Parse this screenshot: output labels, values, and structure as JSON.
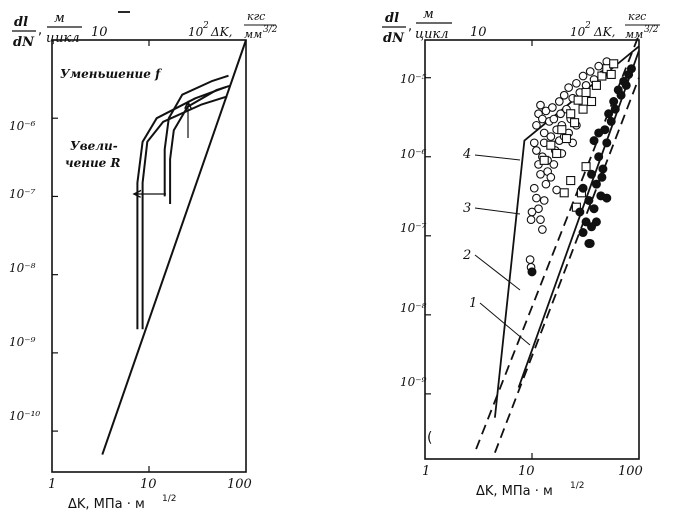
{
  "chart_data": [
    {
      "type": "line",
      "panel": "left",
      "title": "",
      "y_label_top": "dl",
      "y_label_bottom": "dN",
      "y_unit_top": "м",
      "y_unit_bottom": "цикл",
      "top_axis_prefix": "10",
      "top_axis_label": "ΔK,",
      "top_axis_unit_top": "кгс",
      "top_axis_unit_bottom": "мм",
      "top_axis_unit_exp": "3/2",
      "top_ticks": [
        "10",
        "10²"
      ],
      "xlabel": "ΔK, МПа · м",
      "xlabel_exp": "1/2",
      "x_ticks": [
        "1",
        "10",
        "100"
      ],
      "xscale": "log",
      "yscale": "log",
      "xlim": [
        1,
        100
      ],
      "ylim": [
        3e-11,
        1e-05
      ],
      "y_ticks": [
        "10⁻⁶",
        "10⁻⁷",
        "10⁻⁸",
        "10⁻⁹",
        "10⁻¹⁰"
      ],
      "annotations": [
        {
          "text": "Уменьшение f",
          "target": "arrow-up"
        },
        {
          "text": "Увели-",
          "target": "arrow-left"
        },
        {
          "text": "чение R",
          "target": "arrow-left"
        }
      ],
      "series": [
        {
          "values": [
            [
              3.3,
              5e-11
            ],
            [
              100,
              1e-05
            ]
          ]
        },
        {
          "values": [
            [
              7.6,
              2e-09
            ],
            [
              7.6,
              1.5e-07
            ],
            [
              8.6,
              5e-07
            ],
            [
              12,
              1e-06
            ],
            [
              30,
              1.8e-06
            ],
            [
              62,
              2.5e-06
            ]
          ]
        },
        {
          "values": [
            [
              8.6,
              2e-09
            ],
            [
              8.6,
              1.5e-07
            ],
            [
              9.6,
              5e-07
            ],
            [
              14,
              9e-07
            ],
            [
              35,
              1.5e-06
            ],
            [
              64,
              1.9e-06
            ]
          ]
        },
        {
          "values": [
            [
              14.5,
              1e-07
            ],
            [
              14.5,
              4e-07
            ],
            [
              16,
              1e-06
            ],
            [
              22,
              2e-06
            ],
            [
              45,
              3e-06
            ],
            [
              66,
              3.5e-06
            ]
          ]
        },
        {
          "values": [
            [
              16.5,
              8e-08
            ],
            [
              16.5,
              3e-07
            ],
            [
              18,
              7e-07
            ],
            [
              25,
              1.4e-06
            ],
            [
              50,
              2.3e-06
            ],
            [
              68,
              2.6e-06
            ]
          ]
        }
      ]
    },
    {
      "type": "scatter",
      "panel": "right",
      "title": "",
      "y_label_top": "dl",
      "y_label_bottom": "dN",
      "y_unit_top": "м",
      "y_unit_bottom": "цикл",
      "top_axis_prefix": "10",
      "top_axis_label": "ΔK,",
      "top_axis_unit_top": "кгс",
      "top_axis_unit_bottom": "мм",
      "top_axis_unit_exp": "3/2",
      "top_ticks": [
        "10",
        "10²"
      ],
      "xlabel": "ΔK, МПа · м",
      "xlabel_exp": "1/2",
      "x_ticks": [
        "1",
        "10",
        "100"
      ],
      "xscale": "log",
      "yscale": "log",
      "xlim": [
        1,
        100
      ],
      "ylim": [
        1.5e-10,
        3e-05
      ],
      "y_ticks": [
        "10⁻⁵",
        "10⁻⁶",
        "10⁻⁷",
        "10⁻⁸",
        "10⁻⁹"
      ],
      "curve_labels": [
        "4",
        "3",
        "2",
        "1"
      ],
      "lines": [
        {
          "label": "4",
          "style": "solid",
          "values": [
            [
              4.5,
              5e-10
            ],
            [
              8.5,
              1.6e-06
            ],
            [
              100,
              2.5e-05
            ]
          ]
        },
        {
          "label": "2",
          "style": "dashed",
          "values": [
            [
              3,
              2e-10
            ],
            [
              100,
              3.5e-05
            ]
          ]
        },
        {
          "label": "1",
          "style": "dashed",
          "values": [
            [
              4.5,
              1.8e-10
            ],
            [
              100,
              1e-05
            ]
          ]
        },
        {
          "label": "3",
          "style": "solid",
          "values": [
            [
              7.5,
              1.2e-09
            ],
            [
              100,
              2.2e-05
            ]
          ]
        }
      ],
      "series": [
        {
          "marker": "open-circle",
          "points": [
            [
              10.5,
              1.5e-06
            ],
            [
              11,
              2.5e-06
            ],
            [
              11.5,
              3.5e-06
            ],
            [
              12,
              4.5e-06
            ],
            [
              12.5,
              3e-06
            ],
            [
              13,
              2e-06
            ],
            [
              13.5,
              3.8e-06
            ],
            [
              11,
              1.2e-06
            ],
            [
              11.5,
              8e-07
            ],
            [
              12,
              6e-07
            ],
            [
              12.5,
              1e-06
            ],
            [
              13,
              1.5e-06
            ],
            [
              14,
              9e-07
            ],
            [
              14.5,
              2.8e-06
            ],
            [
              15,
              1.8e-06
            ],
            [
              15.5,
              4.2e-06
            ],
            [
              16,
              3e-06
            ],
            [
              16.5,
              1.2e-06
            ],
            [
              17,
              2.2e-06
            ],
            [
              18,
              5e-06
            ],
            [
              18.5,
              3.5e-06
            ],
            [
              19,
              2.5e-06
            ],
            [
              20,
              6e-06
            ],
            [
              21,
              4e-06
            ],
            [
              22,
              7.5e-06
            ],
            [
              23,
              3e-06
            ],
            [
              24,
              5.5e-06
            ],
            [
              26,
              8.5e-06
            ],
            [
              28,
              6.5e-06
            ],
            [
              30,
              1.05e-05
            ],
            [
              32,
              8e-06
            ],
            [
              35,
              1.2e-05
            ],
            [
              38,
              9.5e-06
            ],
            [
              42,
              1.4e-05
            ],
            [
              46,
              1.1e-05
            ],
            [
              50,
              1.6e-05
            ],
            [
              10.5,
              4e-07
            ],
            [
              11,
              3e-07
            ],
            [
              11.5,
              2.2e-07
            ],
            [
              12,
              1.6e-07
            ],
            [
              12.5,
              1.2e-07
            ],
            [
              13,
              2.8e-07
            ],
            [
              13.5,
              4.5e-07
            ],
            [
              14,
              6.5e-07
            ],
            [
              15,
              5.5e-07
            ],
            [
              16,
              8e-07
            ],
            [
              17,
              3.8e-07
            ],
            [
              18,
              1.6e-06
            ],
            [
              19,
              1.1e-06
            ],
            [
              20,
              1.8e-06
            ],
            [
              22,
              2e-06
            ],
            [
              24,
              1.5e-06
            ],
            [
              26,
              2.5e-06
            ],
            [
              10,
              2e-07
            ],
            [
              9.8,
              1.6e-07
            ],
            [
              9.6,
              5e-08
            ],
            [
              9.8,
              4e-08
            ]
          ]
        },
        {
          "marker": "open-square",
          "points": [
            [
              13,
              9e-07
            ],
            [
              15,
              1.4e-06
            ],
            [
              17,
              1.1e-06
            ],
            [
              19,
              2.2e-06
            ],
            [
              21,
              1.7e-06
            ],
            [
              23,
              3.5e-06
            ],
            [
              25,
              2.7e-06
            ],
            [
              27,
              5.2e-06
            ],
            [
              30,
              4e-06
            ],
            [
              32,
              6.5e-06
            ],
            [
              36,
              5e-06
            ],
            [
              40,
              8e-06
            ],
            [
              45,
              1.05e-05
            ],
            [
              50,
              1.3e-05
            ],
            [
              55,
              1.1e-05
            ],
            [
              58,
              1.5e-05
            ],
            [
              20,
              3.5e-07
            ],
            [
              23,
              5e-07
            ],
            [
              26,
              2.3e-07
            ],
            [
              29,
              3.5e-07
            ],
            [
              32,
              7.5e-07
            ]
          ]
        },
        {
          "marker": "filled-circle",
          "points": [
            [
              10,
              3.5e-08
            ],
            [
              28,
              2e-07
            ],
            [
              30,
              4e-07
            ],
            [
              32,
              1.5e-07
            ],
            [
              34,
              2.8e-07
            ],
            [
              36,
              6e-07
            ],
            [
              38,
              2.2e-07
            ],
            [
              40,
              4.5e-07
            ],
            [
              42,
              1e-06
            ],
            [
              44,
              3.2e-07
            ],
            [
              46,
              7e-07
            ],
            [
              48,
              2.2e-06
            ],
            [
              50,
              1.5e-06
            ],
            [
              52,
              3.5e-06
            ],
            [
              55,
              2.8e-06
            ],
            [
              58,
              5e-06
            ],
            [
              60,
              4e-06
            ],
            [
              64,
              7e-06
            ],
            [
              68,
              6e-06
            ],
            [
              72,
              9e-06
            ],
            [
              76,
              8e-06
            ],
            [
              80,
              1.1e-05
            ],
            [
              85,
              1.3e-05
            ],
            [
              30,
              1.1e-07
            ],
            [
              34,
              8e-08
            ],
            [
              40,
              1.5e-07
            ],
            [
              45,
              5.5e-07
            ],
            [
              50,
              3e-07
            ],
            [
              38,
              1.6e-06
            ],
            [
              42,
              2e-06
            ],
            [
              35,
              8e-08
            ],
            [
              36,
              1.3e-07
            ]
          ]
        }
      ]
    }
  ]
}
